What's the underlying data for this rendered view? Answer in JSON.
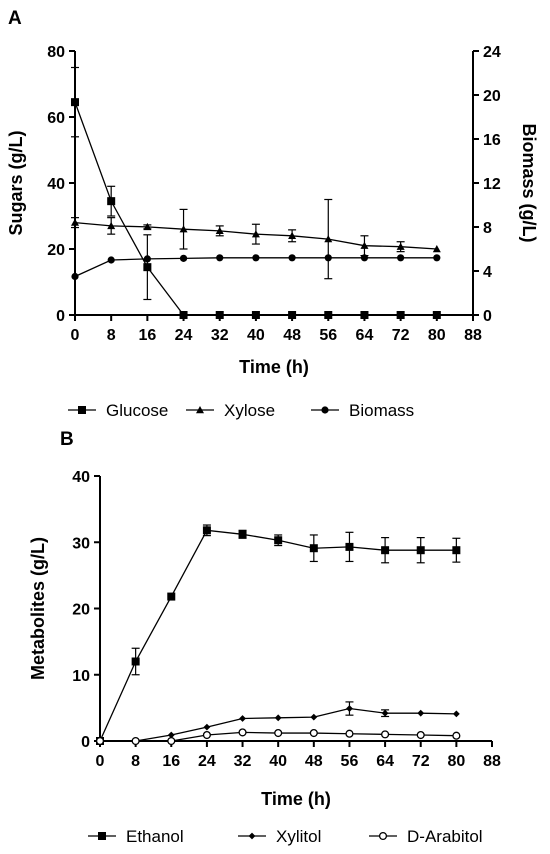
{
  "chart_data": [
    {
      "panel": "A",
      "type": "line",
      "xlabel": "Time (h)",
      "ylabel": "Sugars (g/L)",
      "y2label": "Biomass (g/L)",
      "xlim": [
        0,
        88
      ],
      "xticks": [
        0,
        8,
        16,
        24,
        32,
        40,
        48,
        56,
        64,
        72,
        80,
        88
      ],
      "ylim": [
        0,
        80
      ],
      "yticks": [
        0,
        20,
        40,
        60,
        80
      ],
      "y2lim": [
        0,
        24
      ],
      "y2ticks": [
        0,
        4,
        8,
        12,
        16,
        20,
        24
      ],
      "legend_position": "bottom",
      "series": [
        {
          "name": "Glucose",
          "marker": "square",
          "axis": "left",
          "x": [
            0,
            8,
            16,
            24,
            32,
            40,
            48,
            56,
            64,
            72,
            80
          ],
          "y": [
            64.5,
            34.5,
            14.5,
            0,
            0,
            0,
            0,
            0,
            0,
            0,
            0
          ],
          "err": [
            10.5,
            4.5,
            9.8,
            0,
            0,
            0,
            0,
            0,
            0,
            0,
            0
          ]
        },
        {
          "name": "Xylose",
          "marker": "triangle",
          "axis": "left",
          "x": [
            0,
            8,
            16,
            24,
            32,
            40,
            48,
            56,
            64,
            72,
            80
          ],
          "y": [
            28.0,
            27.0,
            26.7,
            26.0,
            25.5,
            24.5,
            24.0,
            23.0,
            21.0,
            20.7,
            20.0
          ],
          "err": [
            1.5,
            2.5,
            0.6,
            6.0,
            1.5,
            3.0,
            1.8,
            12.0,
            3.0,
            1.5,
            0
          ]
        },
        {
          "name": "Biomass",
          "marker": "circle",
          "axis": "right",
          "x": [
            0,
            8,
            16,
            24,
            32,
            40,
            48,
            56,
            64,
            72,
            80
          ],
          "y": [
            3.5,
            5.0,
            5.1,
            5.15,
            5.2,
            5.2,
            5.2,
            5.2,
            5.2,
            5.2,
            5.2
          ],
          "err": [
            0,
            0,
            0,
            0,
            0,
            0,
            0,
            0,
            0,
            0,
            0
          ]
        }
      ]
    },
    {
      "panel": "B",
      "type": "line",
      "xlabel": "Time (h)",
      "ylabel": "Metabolites (g/L)",
      "xlim": [
        0,
        88
      ],
      "xticks": [
        0,
        8,
        16,
        24,
        32,
        40,
        48,
        56,
        64,
        72,
        80,
        88
      ],
      "ylim": [
        0,
        40
      ],
      "yticks": [
        0,
        10,
        20,
        30,
        40
      ],
      "legend_position": "bottom",
      "series": [
        {
          "name": "Ethanol",
          "marker": "square",
          "x": [
            0,
            8,
            16,
            24,
            32,
            40,
            48,
            56,
            64,
            72,
            80
          ],
          "y": [
            0,
            12.0,
            21.8,
            31.8,
            31.2,
            30.3,
            29.1,
            29.3,
            28.8,
            28.8,
            28.8
          ],
          "err": [
            0,
            2.0,
            0,
            0.8,
            0.6,
            0.8,
            2.0,
            2.2,
            1.9,
            1.9,
            1.8
          ]
        },
        {
          "name": "Xylitol",
          "marker": "diamond",
          "x": [
            0,
            8,
            16,
            24,
            32,
            40,
            48,
            56,
            64,
            72,
            80
          ],
          "y": [
            0,
            0,
            0.9,
            2.1,
            3.4,
            3.5,
            3.6,
            4.9,
            4.2,
            4.2,
            4.1
          ],
          "err": [
            0,
            0,
            0,
            0,
            0,
            0,
            0,
            1.0,
            0.5,
            0,
            0
          ]
        },
        {
          "name": "D-Arabitol",
          "marker": "open-circle",
          "x": [
            0,
            8,
            16,
            24,
            32,
            40,
            48,
            56,
            64,
            72,
            80
          ],
          "y": [
            0,
            0,
            0,
            0.9,
            1.3,
            1.2,
            1.2,
            1.1,
            1.0,
            0.9,
            0.8
          ],
          "err": [
            0,
            0,
            0,
            0,
            0,
            0,
            0,
            0,
            0,
            0,
            0
          ]
        }
      ]
    }
  ]
}
